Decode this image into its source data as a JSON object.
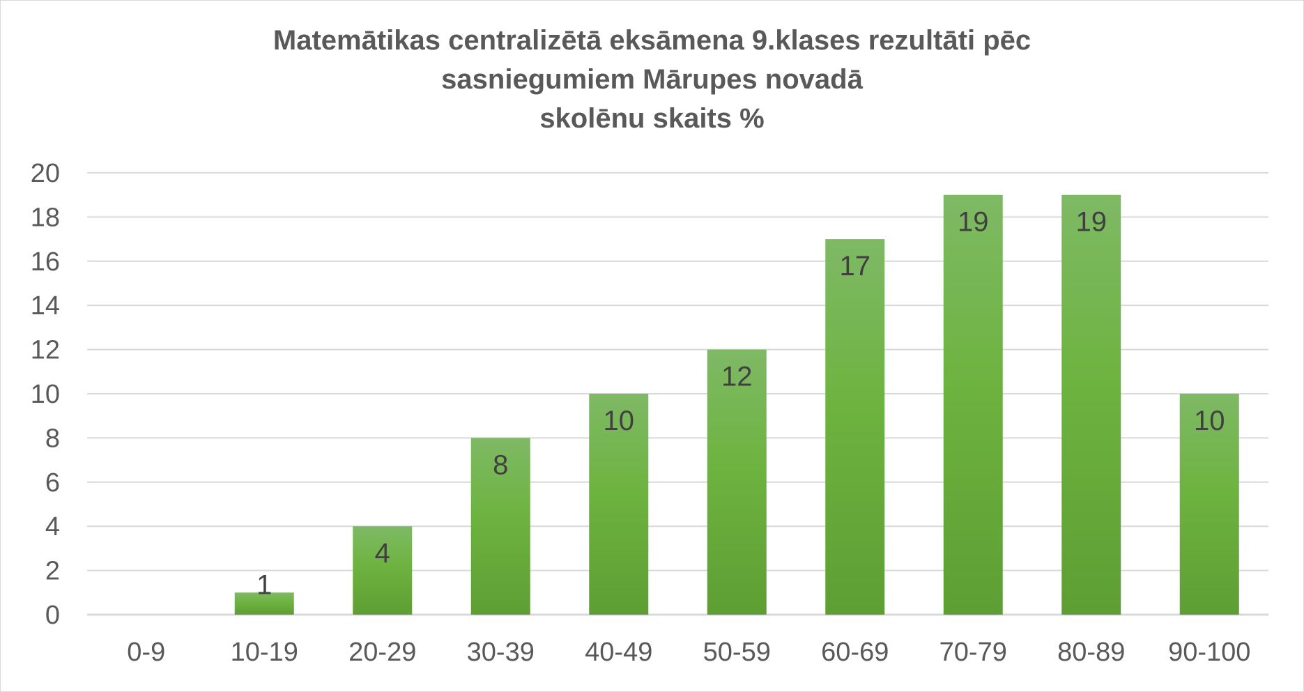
{
  "chart_data": {
    "type": "bar",
    "title_lines": [
      "Matemātikas centralizētā eksāmena 9.klases rezultāti pēc",
      "sasniegumiem Mārupes novadā",
      "skolēnu skaits %"
    ],
    "categories": [
      "0-9",
      "10-19",
      "20-29",
      "30-39",
      "40-49",
      "50-59",
      "60-69",
      "70-79",
      "80-89",
      "90-100"
    ],
    "values": [
      0,
      1,
      4,
      8,
      10,
      12,
      17,
      19,
      19,
      10
    ],
    "data_labels": [
      "",
      "1",
      "4",
      "8",
      "10",
      "12",
      "17",
      "19",
      "19",
      "10"
    ],
    "ylim": [
      0,
      20
    ],
    "yticks": [
      "0",
      "2",
      "4",
      "6",
      "8",
      "10",
      "12",
      "14",
      "16",
      "18",
      "20"
    ],
    "grid": true,
    "legend": "none",
    "xlabel": "",
    "ylabel": "",
    "colors": {
      "bar_top": "#7fb965",
      "bar_mid": "#6db33f",
      "bar_bottom": "#5e9e34",
      "grid": "#d9d9d9",
      "text": "#595959"
    }
  }
}
